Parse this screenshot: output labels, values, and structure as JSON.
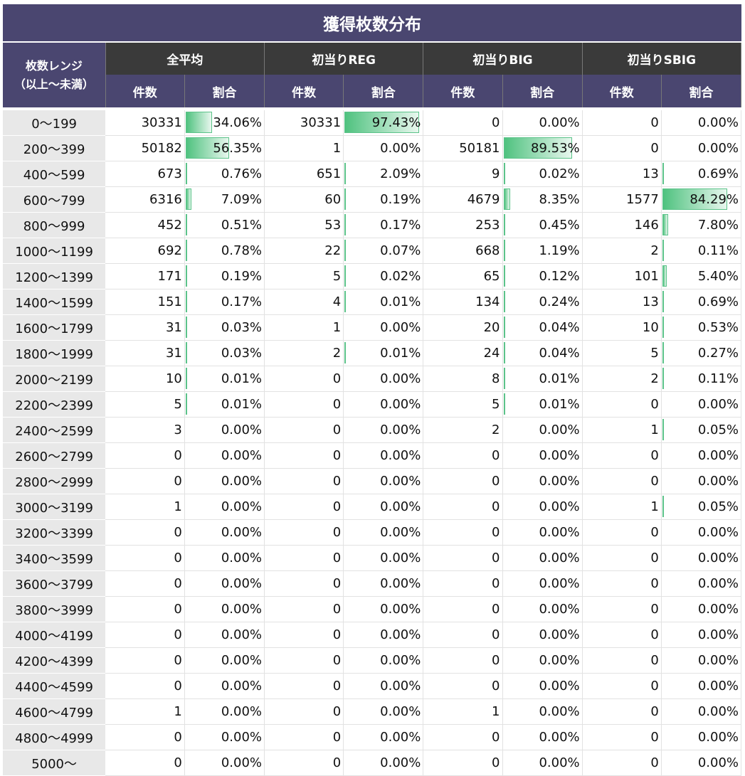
{
  "title": "獲得枚数分布",
  "header": {
    "range_label_line1": "枚数レンジ",
    "range_label_line2": "（以上～未満）",
    "groups": [
      "全平均",
      "初当りREG",
      "初当りBIG",
      "初当りSBIG"
    ],
    "count_label": "件数",
    "ratio_label": "割合"
  },
  "rows": [
    {
      "range": "0～199",
      "cells": [
        [
          "30331",
          "34.06%"
        ],
        [
          "30331",
          "97.43%"
        ],
        [
          "0",
          "0.00%"
        ],
        [
          "0",
          "0.00%"
        ]
      ],
      "fills": [
        0.3406,
        0.9743,
        0,
        0
      ]
    },
    {
      "range": "200～399",
      "cells": [
        [
          "50182",
          "56.35%"
        ],
        [
          "1",
          "0.00%"
        ],
        [
          "50181",
          "89.53%"
        ],
        [
          "0",
          "0.00%"
        ]
      ],
      "fills": [
        0.5635,
        0,
        0.8953,
        0
      ]
    },
    {
      "range": "400～599",
      "cells": [
        [
          "673",
          "0.76%"
        ],
        [
          "651",
          "2.09%"
        ],
        [
          "9",
          "0.02%"
        ],
        [
          "13",
          "0.69%"
        ]
      ],
      "fills": [
        0.0076,
        0.0209,
        0.0002,
        0.0069
      ]
    },
    {
      "range": "600～799",
      "cells": [
        [
          "6316",
          "7.09%"
        ],
        [
          "60",
          "0.19%"
        ],
        [
          "4679",
          "8.35%"
        ],
        [
          "1577",
          "84.29%"
        ]
      ],
      "fills": [
        0.0709,
        0.0019,
        0.0835,
        0.8429
      ]
    },
    {
      "range": "800～999",
      "cells": [
        [
          "452",
          "0.51%"
        ],
        [
          "53",
          "0.17%"
        ],
        [
          "253",
          "0.45%"
        ],
        [
          "146",
          "7.80%"
        ]
      ],
      "fills": [
        0.0051,
        0.0017,
        0.0045,
        0.078
      ]
    },
    {
      "range": "1000～1199",
      "cells": [
        [
          "692",
          "0.78%"
        ],
        [
          "22",
          "0.07%"
        ],
        [
          "668",
          "1.19%"
        ],
        [
          "2",
          "0.11%"
        ]
      ],
      "fills": [
        0.0078,
        0.0007,
        0.0119,
        0.0011
      ]
    },
    {
      "range": "1200～1399",
      "cells": [
        [
          "171",
          "0.19%"
        ],
        [
          "5",
          "0.02%"
        ],
        [
          "65",
          "0.12%"
        ],
        [
          "101",
          "5.40%"
        ]
      ],
      "fills": [
        0.0019,
        0.0002,
        0.0012,
        0.054
      ]
    },
    {
      "range": "1400～1599",
      "cells": [
        [
          "151",
          "0.17%"
        ],
        [
          "4",
          "0.01%"
        ],
        [
          "134",
          "0.24%"
        ],
        [
          "13",
          "0.69%"
        ]
      ],
      "fills": [
        0.0017,
        0.0001,
        0.0024,
        0.0069
      ]
    },
    {
      "range": "1600～1799",
      "cells": [
        [
          "31",
          "0.03%"
        ],
        [
          "1",
          "0.00%"
        ],
        [
          "20",
          "0.04%"
        ],
        [
          "10",
          "0.53%"
        ]
      ],
      "fills": [
        0.0003,
        0,
        0.0004,
        0.0053
      ]
    },
    {
      "range": "1800～1999",
      "cells": [
        [
          "31",
          "0.03%"
        ],
        [
          "2",
          "0.01%"
        ],
        [
          "24",
          "0.04%"
        ],
        [
          "5",
          "0.27%"
        ]
      ],
      "fills": [
        0.0003,
        0.0001,
        0.0004,
        0.0027
      ]
    },
    {
      "range": "2000～2199",
      "cells": [
        [
          "10",
          "0.01%"
        ],
        [
          "0",
          "0.00%"
        ],
        [
          "8",
          "0.01%"
        ],
        [
          "2",
          "0.11%"
        ]
      ],
      "fills": [
        0.0001,
        0,
        0.0001,
        0.0011
      ]
    },
    {
      "range": "2200～2399",
      "cells": [
        [
          "5",
          "0.01%"
        ],
        [
          "0",
          "0.00%"
        ],
        [
          "5",
          "0.01%"
        ],
        [
          "0",
          "0.00%"
        ]
      ],
      "fills": [
        0.0001,
        0,
        0.0001,
        0
      ]
    },
    {
      "range": "2400～2599",
      "cells": [
        [
          "3",
          "0.00%"
        ],
        [
          "0",
          "0.00%"
        ],
        [
          "2",
          "0.00%"
        ],
        [
          "1",
          "0.05%"
        ]
      ],
      "fills": [
        0,
        0,
        0,
        0.0005
      ]
    },
    {
      "range": "2600～2799",
      "cells": [
        [
          "0",
          "0.00%"
        ],
        [
          "0",
          "0.00%"
        ],
        [
          "0",
          "0.00%"
        ],
        [
          "0",
          "0.00%"
        ]
      ],
      "fills": [
        0,
        0,
        0,
        0
      ]
    },
    {
      "range": "2800～2999",
      "cells": [
        [
          "0",
          "0.00%"
        ],
        [
          "0",
          "0.00%"
        ],
        [
          "0",
          "0.00%"
        ],
        [
          "0",
          "0.00%"
        ]
      ],
      "fills": [
        0,
        0,
        0,
        0
      ]
    },
    {
      "range": "3000～3199",
      "cells": [
        [
          "1",
          "0.00%"
        ],
        [
          "0",
          "0.00%"
        ],
        [
          "0",
          "0.00%"
        ],
        [
          "1",
          "0.05%"
        ]
      ],
      "fills": [
        0,
        0,
        0,
        0.0005
      ]
    },
    {
      "range": "3200～3399",
      "cells": [
        [
          "0",
          "0.00%"
        ],
        [
          "0",
          "0.00%"
        ],
        [
          "0",
          "0.00%"
        ],
        [
          "0",
          "0.00%"
        ]
      ],
      "fills": [
        0,
        0,
        0,
        0
      ]
    },
    {
      "range": "3400～3599",
      "cells": [
        [
          "0",
          "0.00%"
        ],
        [
          "0",
          "0.00%"
        ],
        [
          "0",
          "0.00%"
        ],
        [
          "0",
          "0.00%"
        ]
      ],
      "fills": [
        0,
        0,
        0,
        0
      ]
    },
    {
      "range": "3600～3799",
      "cells": [
        [
          "0",
          "0.00%"
        ],
        [
          "0",
          "0.00%"
        ],
        [
          "0",
          "0.00%"
        ],
        [
          "0",
          "0.00%"
        ]
      ],
      "fills": [
        0,
        0,
        0,
        0
      ]
    },
    {
      "range": "3800～3999",
      "cells": [
        [
          "0",
          "0.00%"
        ],
        [
          "0",
          "0.00%"
        ],
        [
          "0",
          "0.00%"
        ],
        [
          "0",
          "0.00%"
        ]
      ],
      "fills": [
        0,
        0,
        0,
        0
      ]
    },
    {
      "range": "4000～4199",
      "cells": [
        [
          "0",
          "0.00%"
        ],
        [
          "0",
          "0.00%"
        ],
        [
          "0",
          "0.00%"
        ],
        [
          "0",
          "0.00%"
        ]
      ],
      "fills": [
        0,
        0,
        0,
        0
      ]
    },
    {
      "range": "4200～4399",
      "cells": [
        [
          "0",
          "0.00%"
        ],
        [
          "0",
          "0.00%"
        ],
        [
          "0",
          "0.00%"
        ],
        [
          "0",
          "0.00%"
        ]
      ],
      "fills": [
        0,
        0,
        0,
        0
      ]
    },
    {
      "range": "4400～4599",
      "cells": [
        [
          "0",
          "0.00%"
        ],
        [
          "0",
          "0.00%"
        ],
        [
          "0",
          "0.00%"
        ],
        [
          "0",
          "0.00%"
        ]
      ],
      "fills": [
        0,
        0,
        0,
        0
      ]
    },
    {
      "range": "4600～4799",
      "cells": [
        [
          "1",
          "0.00%"
        ],
        [
          "0",
          "0.00%"
        ],
        [
          "1",
          "0.00%"
        ],
        [
          "0",
          "0.00%"
        ]
      ],
      "fills": [
        0,
        0,
        0,
        0
      ]
    },
    {
      "range": "4800～4999",
      "cells": [
        [
          "0",
          "0.00%"
        ],
        [
          "0",
          "0.00%"
        ],
        [
          "0",
          "0.00%"
        ],
        [
          "0",
          "0.00%"
        ]
      ],
      "fills": [
        0,
        0,
        0,
        0
      ]
    },
    {
      "range": "5000～",
      "cells": [
        [
          "0",
          "0.00%"
        ],
        [
          "0",
          "0.00%"
        ],
        [
          "0",
          "0.00%"
        ],
        [
          "0",
          "0.00%"
        ]
      ],
      "fills": [
        0,
        0,
        0,
        0
      ]
    }
  ],
  "colors": {
    "title_bg": "#4a4670",
    "group_header_bg": "#3a3a3a",
    "subheader_bg": "#4a4670",
    "range_cell_bg": "#e8e8e8",
    "bar_green": "#4fc27f"
  }
}
